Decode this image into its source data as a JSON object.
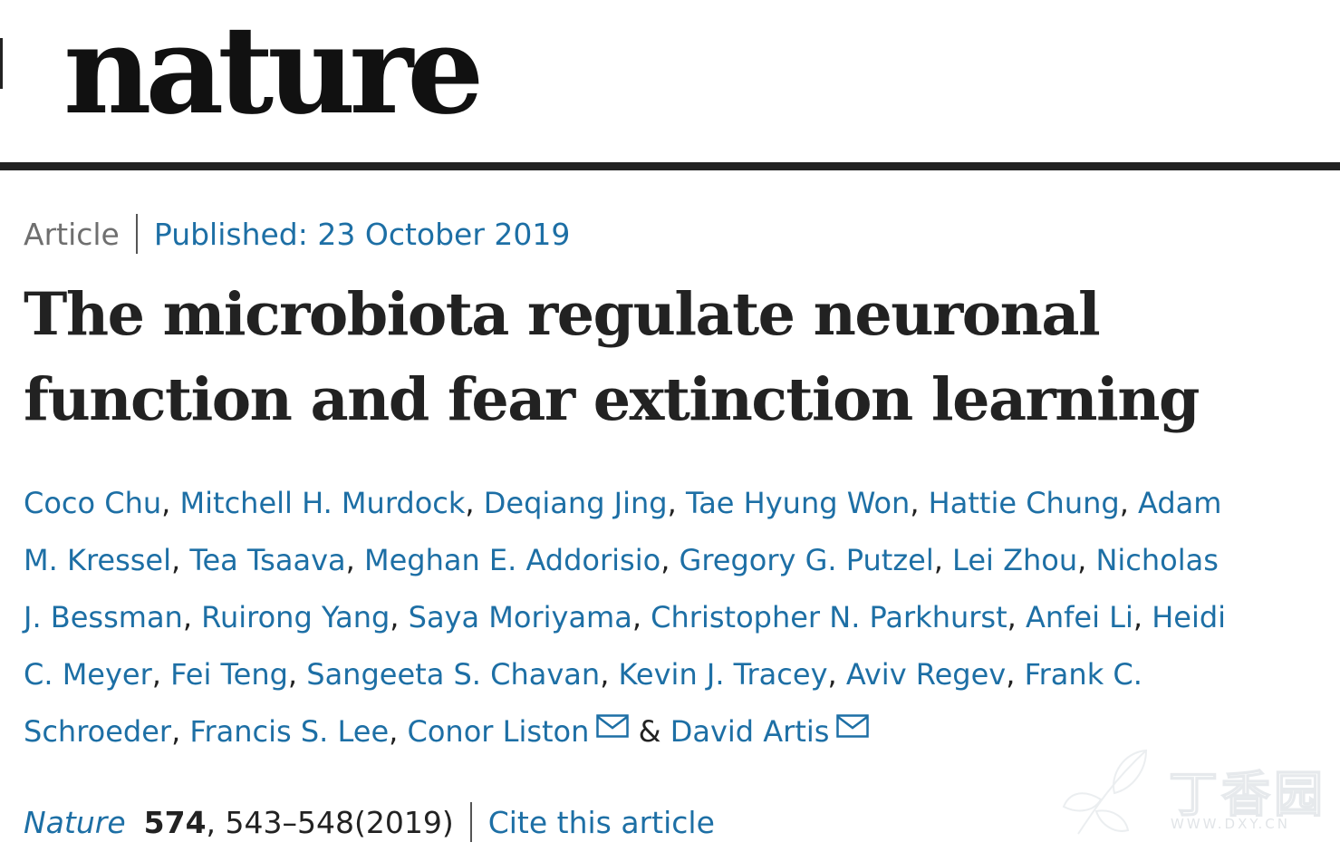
{
  "header": {
    "logo_text": "nature"
  },
  "article": {
    "type": "Article",
    "published": "Published: 23 October 2019",
    "title": "The microbiota regulate neuronal function and fear extinction learning"
  },
  "authors": [
    {
      "name": "Coco Chu",
      "suffix": ", "
    },
    {
      "name": "Mitchell H. Murdock",
      "suffix": ", "
    },
    {
      "name": "Deqiang Jing",
      "suffix": ", "
    },
    {
      "name": "Tae Hyung Won",
      "suffix": ", "
    },
    {
      "name": "Hattie Chung",
      "suffix": ", "
    },
    {
      "name": "Adam M. Kressel",
      "suffix": ", "
    },
    {
      "name": "Tea Tsaava",
      "suffix": ", "
    },
    {
      "name": "Meghan E. Addorisio",
      "suffix": ", "
    },
    {
      "name": "Gregory G. Putzel",
      "suffix": ", "
    },
    {
      "name": "Lei Zhou",
      "suffix": ", "
    },
    {
      "name": "Nicholas J. Bessman",
      "suffix": ", "
    },
    {
      "name": "Ruirong Yang",
      "suffix": ", "
    },
    {
      "name": "Saya Moriyama",
      "suffix": ", "
    },
    {
      "name": "Christopher N. Parkhurst",
      "suffix": ", "
    },
    {
      "name": "Anfei Li",
      "suffix": ", "
    },
    {
      "name": "Heidi C. Meyer",
      "suffix": ", "
    },
    {
      "name": "Fei Teng",
      "suffix": ", "
    },
    {
      "name": "Sangeeta S. Chavan",
      "suffix": ", "
    },
    {
      "name": "Kevin J. Tracey",
      "suffix": ", "
    },
    {
      "name": "Aviv Regev",
      "suffix": ", "
    },
    {
      "name": "Frank C. Schroeder",
      "suffix": ", "
    },
    {
      "name": "Francis S. Lee",
      "suffix": ", "
    },
    {
      "name": "Conor Liston",
      "suffix": " & ",
      "mail_icon": "mail-icon"
    },
    {
      "name": "David Artis",
      "suffix": "",
      "mail_icon": "mail-icon"
    }
  ],
  "citation": {
    "journal": "Nature",
    "volume": "574",
    "pages": ", 543–548(2019)",
    "cite_label": "Cite this article"
  },
  "watermark": {
    "text": "丁香园",
    "url": "WWW.DXY.CN",
    "icon": "leaf-logo-icon"
  },
  "colors": {
    "link": "#1d6fa5",
    "text": "#222222",
    "muted": "#6f6f6f"
  }
}
